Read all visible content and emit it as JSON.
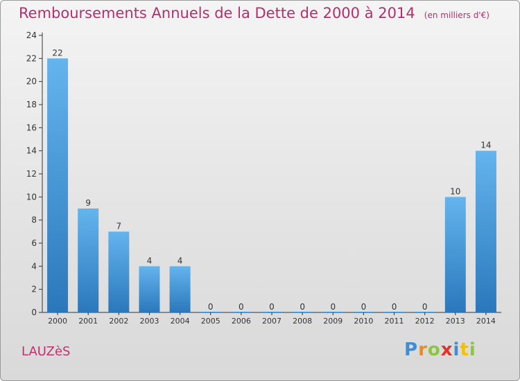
{
  "title": "Remboursements Annuels de la Dette de 2000 à 2014",
  "unit": "(en milliers d'€)",
  "commune": "LAUZèS",
  "logo": "Proxiti",
  "colors": {
    "title": "#b0306e",
    "bar_top": "#64b4ee",
    "bar_bottom": "#2a78bb",
    "axis": "#333333"
  },
  "chart_data": {
    "type": "bar",
    "title": "Remboursements Annuels de la Dette de 2000 à 2014",
    "xlabel": "",
    "ylabel": "",
    "ylim": [
      0,
      24
    ],
    "yticks": [
      0,
      2,
      4,
      6,
      8,
      10,
      12,
      14,
      16,
      18,
      20,
      22,
      24
    ],
    "grid": false,
    "categories": [
      "2000",
      "2001",
      "2002",
      "2003",
      "2004",
      "2005",
      "2006",
      "2007",
      "2008",
      "2009",
      "2010",
      "2011",
      "2012",
      "2013",
      "2014"
    ],
    "values": [
      22,
      9,
      7,
      4,
      4,
      0,
      0,
      0,
      0,
      0,
      0,
      0,
      0,
      10,
      14
    ]
  }
}
